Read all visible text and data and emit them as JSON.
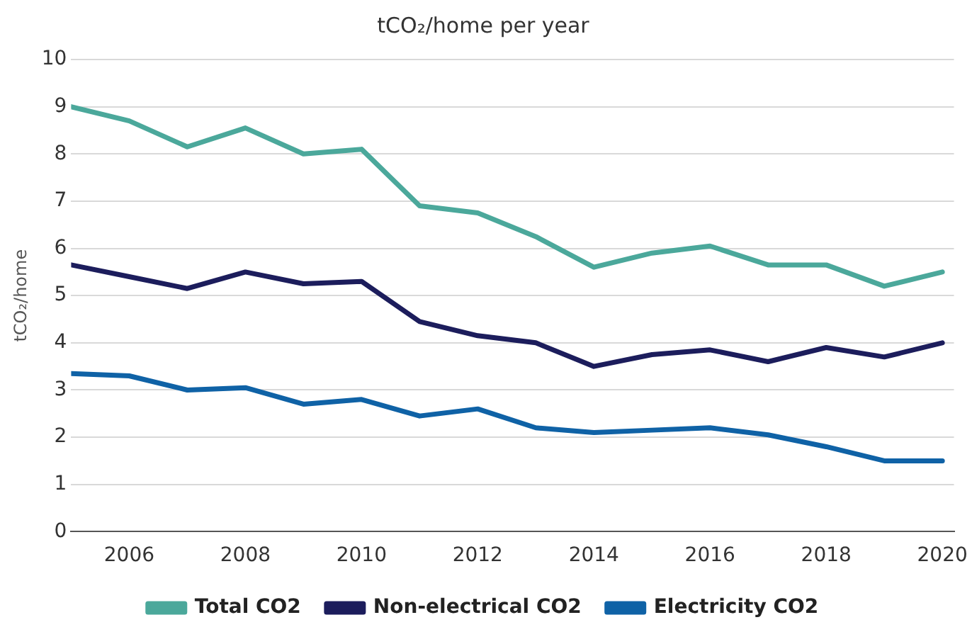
{
  "chart_data": {
    "type": "line",
    "title": "tCO₂/home per year",
    "ylabel": "tCO₂/home",
    "x": [
      2005,
      2006,
      2007,
      2008,
      2009,
      2010,
      2011,
      2012,
      2013,
      2014,
      2015,
      2016,
      2017,
      2018,
      2019,
      2020
    ],
    "series": [
      {
        "name": "Total CO2",
        "color": "#4ba89b",
        "values": [
          9.0,
          8.7,
          8.15,
          8.55,
          8.0,
          8.1,
          6.9,
          6.75,
          6.25,
          5.6,
          5.9,
          6.05,
          5.65,
          5.65,
          5.2,
          5.5
        ]
      },
      {
        "name": "Non-electrical CO2",
        "color": "#1c1d5c",
        "values": [
          5.65,
          5.4,
          5.15,
          5.5,
          5.25,
          5.3,
          4.45,
          4.15,
          4.0,
          3.5,
          3.75,
          3.85,
          3.6,
          3.9,
          3.7,
          4.0
        ]
      },
      {
        "name": "Electricity CO2",
        "color": "#0f62a6",
        "values": [
          3.35,
          3.3,
          3.0,
          3.05,
          2.7,
          2.8,
          2.45,
          2.6,
          2.2,
          2.1,
          2.15,
          2.2,
          2.05,
          1.8,
          1.5,
          1.5
        ]
      }
    ],
    "xlim": [
      2005,
      2020.2
    ],
    "xticks": [
      2006,
      2008,
      2010,
      2012,
      2014,
      2016,
      2018,
      2020
    ],
    "ylim": [
      0,
      10
    ],
    "yticks": [
      0,
      1,
      2,
      3,
      4,
      5,
      6,
      7,
      8,
      9,
      10
    ],
    "grid": "y",
    "legend": "bottom",
    "marker": "none",
    "line_style": "solid"
  }
}
